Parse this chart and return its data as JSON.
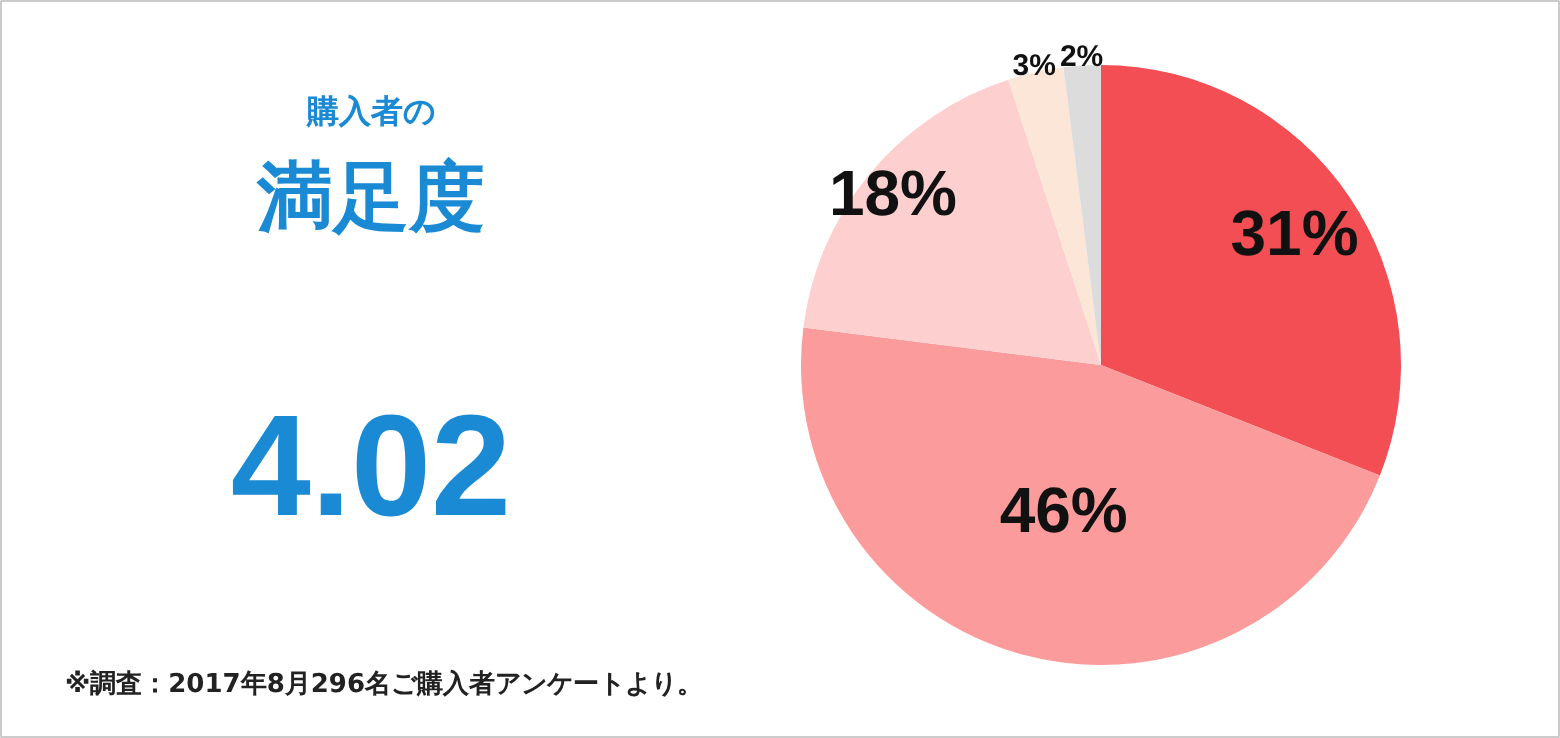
{
  "chart_data": [
    {
      "type": "other",
      "subtitle": "購入者の",
      "title": "満足度",
      "annotations": [
        "4.02"
      ]
    },
    {
      "type": "pie",
      "categories": [
        null,
        null,
        null,
        null,
        null
      ],
      "values": [
        31,
        46,
        18,
        3,
        2
      ],
      "colors": [
        "#f24e53",
        "#fc9b9b",
        "#fdcfcf",
        "#fbe6d8",
        "#dcdcdc"
      ],
      "value_labels": [
        "31%",
        "46%",
        "18%",
        "3%",
        "2%"
      ],
      "annotations": [
        "※調査：2017年8月296名ご購入者アンケートより。"
      ]
    }
  ]
}
